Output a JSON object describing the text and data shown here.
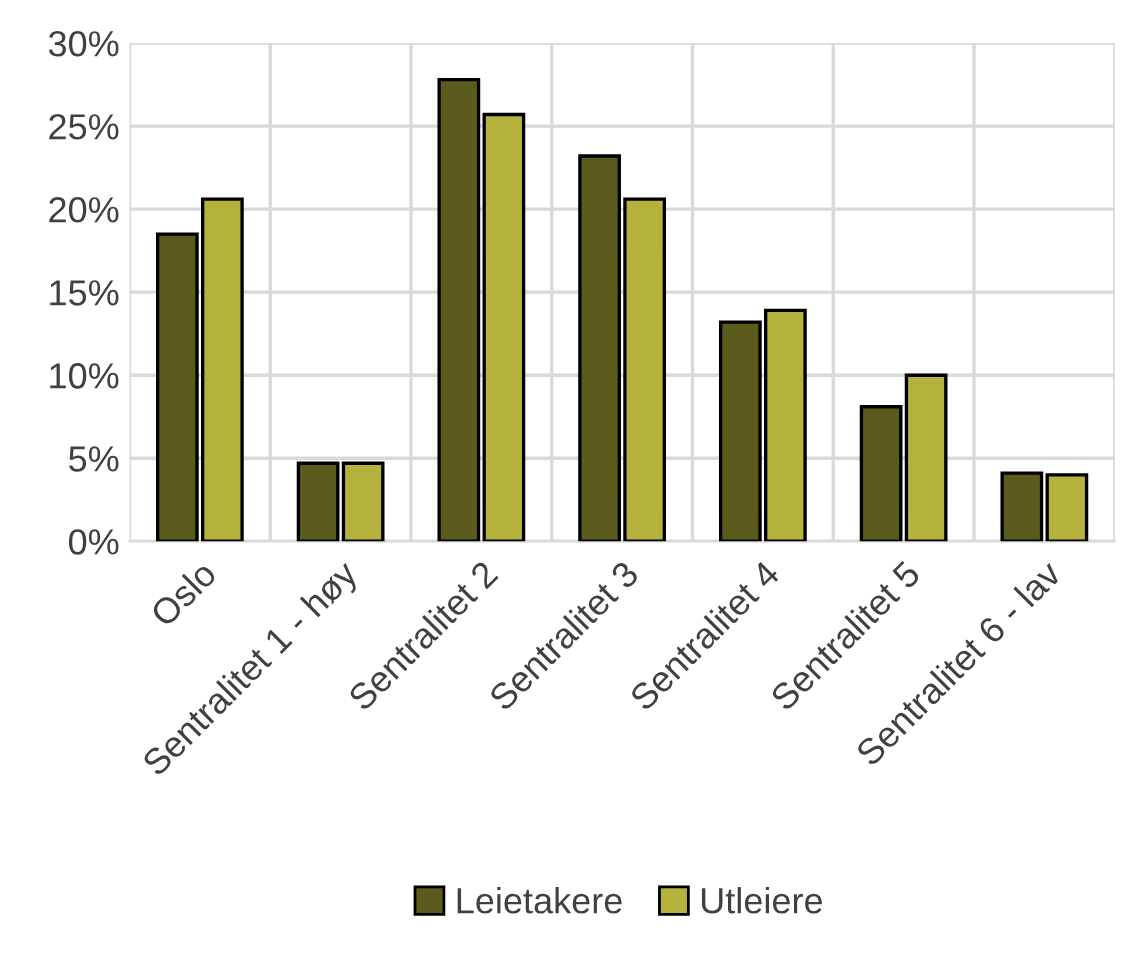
{
  "chart_data": {
    "type": "bar",
    "categories": [
      "Oslo",
      "Sentralitet 1 - høy",
      "Sentralitet 2",
      "Sentralitet 3",
      "Sentralitet 4",
      "Sentralitet 5",
      "Sentralitet 6 - lav"
    ],
    "series": [
      {
        "name": "Leietakere",
        "color": "#5b5b1e",
        "values": [
          18.5,
          4.7,
          27.8,
          23.2,
          13.2,
          8.1,
          4.1
        ]
      },
      {
        "name": "Utleiere",
        "color": "#b5b33e",
        "values": [
          20.6,
          4.7,
          25.7,
          20.6,
          13.9,
          10.0,
          4.0
        ]
      }
    ],
    "ylim": [
      0,
      30
    ],
    "yticks": [
      {
        "value": 0,
        "label": "0%"
      },
      {
        "value": 5,
        "label": "5%"
      },
      {
        "value": 10,
        "label": "10%"
      },
      {
        "value": 15,
        "label": "15%"
      },
      {
        "value": 20,
        "label": "20%"
      },
      {
        "value": 25,
        "label": "25%"
      },
      {
        "value": 30,
        "label": "30%"
      }
    ],
    "grid": true,
    "legend": "bottom"
  }
}
